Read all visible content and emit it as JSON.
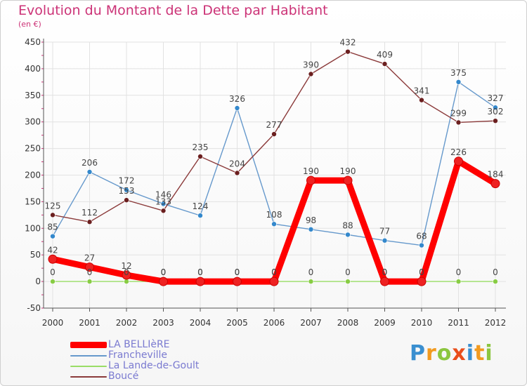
{
  "chart_data": {
    "type": "line",
    "title": "Evolution du Montant de la Dette par Habitant",
    "subtitle": "(en €)",
    "categories": [
      "2000",
      "2001",
      "2002",
      "2003",
      "2004",
      "2005",
      "2006",
      "2007",
      "2008",
      "2009",
      "2010",
      "2011",
      "2012"
    ],
    "ylim": [
      -50,
      450
    ],
    "yticks": [
      -50,
      0,
      50,
      100,
      150,
      200,
      250,
      300,
      350,
      400,
      450
    ],
    "grid": true,
    "legend_position": "bottom-left",
    "series": [
      {
        "name": "LA BELLIèRE",
        "color": "#ff0000",
        "marker": "#ee2222",
        "thick": true,
        "values": [
          42,
          27,
          12,
          0,
          0,
          0,
          0,
          190,
          190,
          0,
          0,
          226,
          184
        ]
      },
      {
        "name": "Francheville",
        "color": "#6699cc",
        "marker": "#3388cc",
        "thick": false,
        "values": [
          85,
          206,
          172,
          146,
          124,
          326,
          108,
          98,
          88,
          77,
          68,
          375,
          327
        ]
      },
      {
        "name": "La Lande-de-Goult",
        "color": "#99dd66",
        "marker": "#88cc44",
        "thick": false,
        "values": [
          0,
          0,
          0,
          0,
          0,
          0,
          0,
          0,
          0,
          0,
          0,
          0,
          0
        ]
      },
      {
        "name": "Boucé",
        "color": "#8b3a3a",
        "marker": "#6b1f1f",
        "thick": false,
        "values": [
          125,
          112,
          153,
          133,
          235,
          204,
          277,
          390,
          432,
          409,
          341,
          299,
          302
        ]
      }
    ]
  },
  "brand": {
    "letters": [
      "P",
      "r",
      "o",
      "x",
      "i",
      "t",
      "i"
    ],
    "colors": [
      "#3a8fd0",
      "#f29a1f",
      "#8cc63f",
      "#e94e1b",
      "#3a8fd0",
      "#f29a1f",
      "#8cc63f"
    ]
  }
}
